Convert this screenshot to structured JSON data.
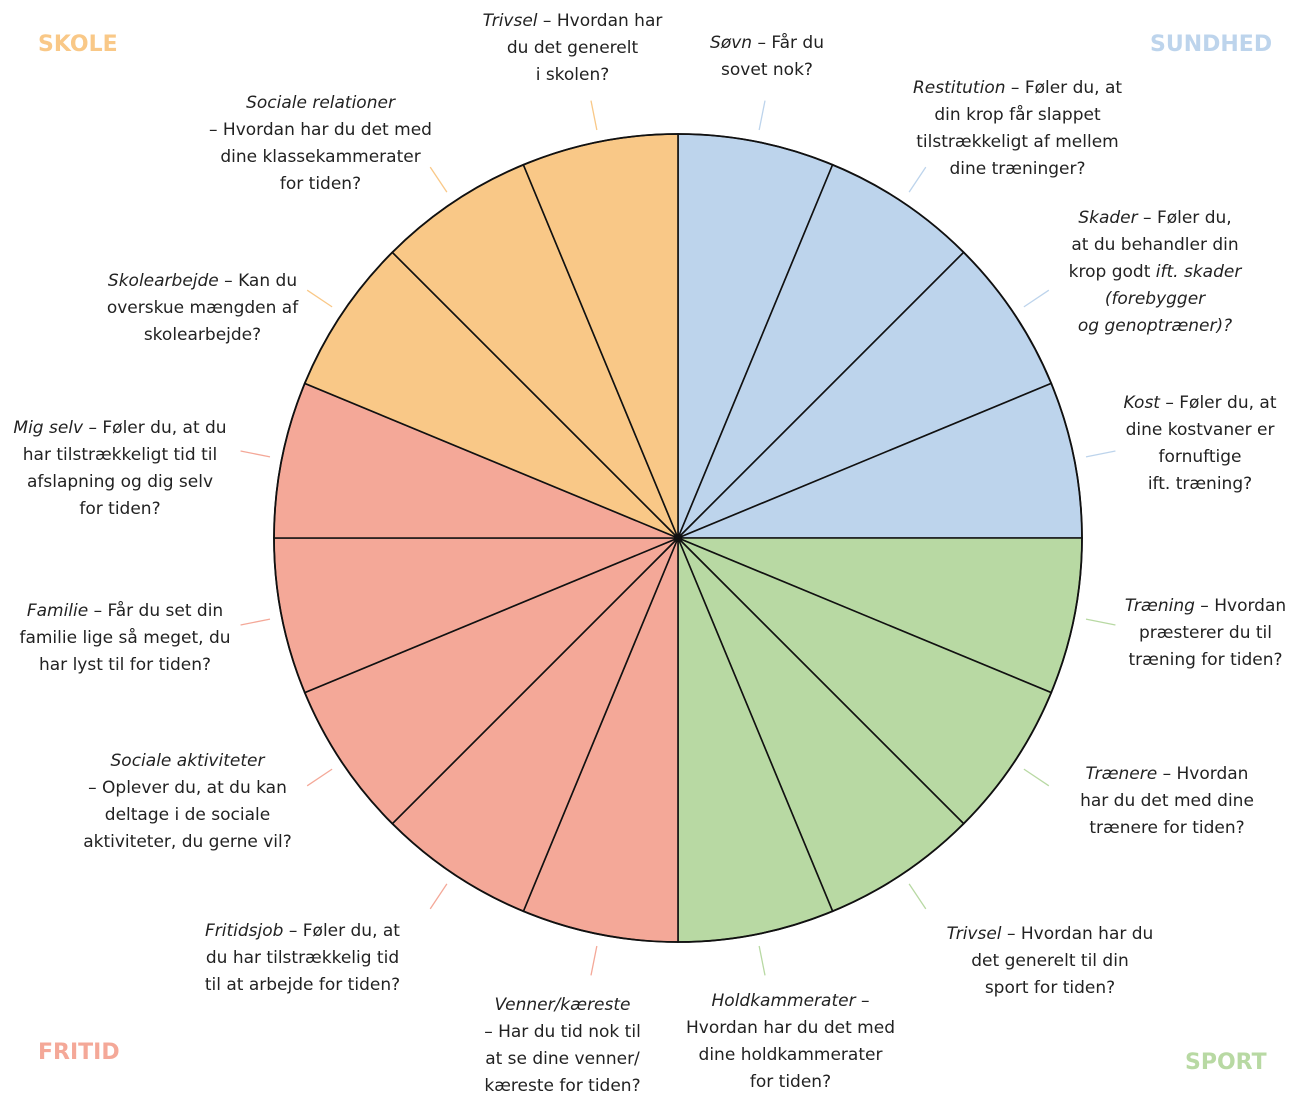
{
  "categories": {
    "skole": {
      "label": "SKOLE",
      "color": "#F9C887"
    },
    "sundhed": {
      "label": "SUNDHED",
      "color": "#BDD4EC"
    },
    "sport": {
      "label": "SPORT",
      "color": "#B8D9A3"
    },
    "fritid": {
      "label": "FRITID",
      "color": "#F4A898"
    }
  },
  "segments": [
    {
      "category": "sundhed",
      "title": "Søvn",
      "sep": " – ",
      "text": "Får du\nsovet nok?"
    },
    {
      "category": "sundhed",
      "title": "Restitution",
      "sep": " – ",
      "text": "Føler du, at\ndin krop får slappet\ntilstrækkeligt af mellem\ndine træninger?"
    },
    {
      "category": "sundhed",
      "title": "Skader",
      "sep": " – ",
      "text": "Føler du,\nat du behandler din\nkrop godt ",
      "tail_italic": "ift. skader\n(forebygger\nog genoptræner)?"
    },
    {
      "category": "sundhed",
      "title": "Kost",
      "sep": " – ",
      "text": "Føler du, at\ndine kostvaner er\nfornuftige\nift. træning?"
    },
    {
      "category": "sport",
      "title": "Træning",
      "sep": " – ",
      "text": "Hvordan\npræsterer du til\ntræning for tiden?"
    },
    {
      "category": "sport",
      "title": "Trænere",
      "sep": " – ",
      "text": "Hvordan\nhar du det med dine\ntrænere for tiden?"
    },
    {
      "category": "sport",
      "title": "Trivsel",
      "sep": " – ",
      "text": "Hvordan har du\ndet generelt til din\nsport for tiden?"
    },
    {
      "category": "sport",
      "title": "Holdkammerater",
      "sep": " –\n",
      "text": "Hvordan har du det med\ndine holdkammerater\nfor tiden?"
    },
    {
      "category": "fritid",
      "title": "Venner/kæreste",
      "sep": "\n",
      "text": "– Har du tid nok til\nat se dine venner/\nkæreste for tiden?"
    },
    {
      "category": "fritid",
      "title": "Fritidsjob",
      "sep": " – ",
      "text": "Føler du, at\ndu har tilstrækkelig tid\ntil at arbejde for tiden?"
    },
    {
      "category": "fritid",
      "title": "Sociale aktiviteter",
      "sep": "\n",
      "text": "– Oplever du, at du kan\ndeltage i de sociale\naktiviteter, du gerne vil?"
    },
    {
      "category": "fritid",
      "title": "Familie",
      "sep": " – ",
      "text": "Får du set din\nfamilie lige så meget, du\nhar lyst til for tiden?"
    },
    {
      "category": "fritid",
      "title": "Mig selv",
      "sep": " – ",
      "text": "Føler du, at du\nhar tilstrækkeligt tid til\nafslapning og dig selv\nfor tiden?"
    },
    {
      "category": "skole",
      "title": "Skolearbejde",
      "sep": " – ",
      "text": "Kan du\noverskue mængden af\nskolearbejde?"
    },
    {
      "category": "skole",
      "title": "Sociale relationer",
      "sep": "\n",
      "text": "– Hvordan har du det med\ndine klassekammerater\nfor tiden?"
    },
    {
      "category": "skole",
      "title": "Trivsel",
      "sep": " – ",
      "text": "Hvordan har\ndu det generelt\ni skolen?"
    }
  ]
}
